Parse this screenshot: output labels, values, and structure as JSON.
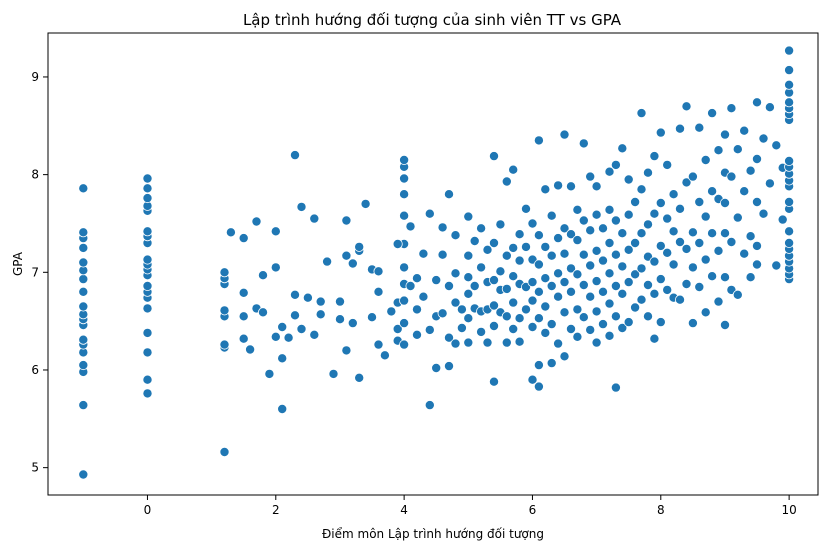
{
  "chart_data": {
    "type": "scatter",
    "title": "Lập trình hướng đối tượng của sinh viên TT vs GPA",
    "xlabel": "Điểm môn Lập trình hướng đối tượng",
    "ylabel": "GPA",
    "xlim": [
      -1.55,
      10.45
    ],
    "ylim": [
      4.72,
      9.45
    ],
    "xticks": [
      0,
      2,
      4,
      6,
      8,
      10
    ],
    "yticks": [
      5,
      6,
      7,
      8,
      9
    ],
    "grid": false,
    "legend": "none",
    "point_color": "#1f77b4",
    "points": [
      [
        -1,
        4.93
      ],
      [
        -1,
        5.64
      ],
      [
        -1,
        5.98
      ],
      [
        -1,
        6.05
      ],
      [
        -1,
        6.18
      ],
      [
        -1,
        6.26
      ],
      [
        -1,
        6.31
      ],
      [
        -1,
        6.46
      ],
      [
        -1,
        6.52
      ],
      [
        -1,
        6.57
      ],
      [
        -1,
        6.65
      ],
      [
        -1,
        6.8
      ],
      [
        -1,
        6.93
      ],
      [
        -1,
        7.02
      ],
      [
        -1,
        7.1
      ],
      [
        -1,
        7.25
      ],
      [
        -1,
        7.35
      ],
      [
        -1,
        7.41
      ],
      [
        -1,
        7.86
      ],
      [
        0,
        5.76
      ],
      [
        0,
        5.9
      ],
      [
        0,
        6.18
      ],
      [
        0,
        6.38
      ],
      [
        0,
        6.63
      ],
      [
        0,
        6.74
      ],
      [
        0,
        6.8
      ],
      [
        0,
        6.86
      ],
      [
        0,
        6.97
      ],
      [
        0,
        7.03
      ],
      [
        0,
        7.08
      ],
      [
        0,
        7.13
      ],
      [
        0,
        7.3
      ],
      [
        0,
        7.37
      ],
      [
        0,
        7.42
      ],
      [
        0,
        7.63
      ],
      [
        0,
        7.68
      ],
      [
        0,
        7.76
      ],
      [
        0,
        7.86
      ],
      [
        0,
        7.96
      ],
      [
        1.2,
        5.16
      ],
      [
        1.2,
        6.23
      ],
      [
        1.2,
        6.26
      ],
      [
        1.2,
        6.55
      ],
      [
        1.2,
        6.61
      ],
      [
        1.2,
        6.88
      ],
      [
        1.2,
        6.94
      ],
      [
        1.2,
        7.0
      ],
      [
        1.3,
        7.41
      ],
      [
        1.5,
        6.32
      ],
      [
        1.5,
        6.55
      ],
      [
        1.5,
        6.79
      ],
      [
        1.5,
        7.35
      ],
      [
        1.6,
        6.21
      ],
      [
        1.7,
        6.63
      ],
      [
        1.7,
        7.52
      ],
      [
        1.8,
        6.59
      ],
      [
        1.8,
        6.97
      ],
      [
        1.9,
        5.96
      ],
      [
        2.0,
        6.34
      ],
      [
        2.0,
        7.05
      ],
      [
        2.0,
        7.42
      ],
      [
        2.1,
        5.6
      ],
      [
        2.1,
        6.12
      ],
      [
        2.1,
        6.44
      ],
      [
        2.2,
        6.33
      ],
      [
        2.3,
        8.2
      ],
      [
        2.3,
        6.56
      ],
      [
        2.3,
        6.77
      ],
      [
        2.4,
        6.42
      ],
      [
        2.4,
        7.67
      ],
      [
        2.5,
        6.74
      ],
      [
        2.6,
        6.36
      ],
      [
        2.6,
        7.55
      ],
      [
        2.7,
        6.57
      ],
      [
        2.7,
        6.7
      ],
      [
        2.8,
        7.11
      ],
      [
        2.9,
        5.96
      ],
      [
        3.0,
        6.52
      ],
      [
        3.0,
        6.7
      ],
      [
        3.1,
        6.2
      ],
      [
        3.1,
        7.17
      ],
      [
        3.1,
        7.53
      ],
      [
        3.2,
        6.48
      ],
      [
        3.2,
        7.09
      ],
      [
        3.3,
        5.92
      ],
      [
        3.3,
        7.22
      ],
      [
        3.3,
        7.26
      ],
      [
        3.4,
        7.7
      ],
      [
        3.5,
        6.54
      ],
      [
        3.5,
        7.03
      ],
      [
        3.6,
        6.8
      ],
      [
        3.6,
        7.01
      ],
      [
        3.6,
        6.26
      ],
      [
        3.7,
        6.15
      ],
      [
        3.8,
        6.6
      ],
      [
        3.9,
        6.3
      ],
      [
        3.9,
        6.42
      ],
      [
        3.9,
        6.69
      ],
      [
        4.0,
        6.26
      ],
      [
        4.0,
        6.48
      ],
      [
        4.0,
        6.71
      ],
      [
        4.0,
        6.88
      ],
      [
        4.0,
        7.05
      ],
      [
        4.0,
        7.29
      ],
      [
        4.0,
        7.58
      ],
      [
        4.0,
        7.8
      ],
      [
        4.0,
        7.96
      ],
      [
        4.0,
        8.08
      ],
      [
        4.0,
        8.15
      ],
      [
        3.9,
        7.29
      ],
      [
        4.1,
        6.86
      ],
      [
        4.1,
        7.47
      ],
      [
        4.2,
        6.36
      ],
      [
        4.2,
        6.62
      ],
      [
        4.2,
        6.94
      ],
      [
        4.3,
        7.19
      ],
      [
        4.3,
        6.75
      ],
      [
        4.4,
        5.64
      ],
      [
        4.4,
        6.41
      ],
      [
        4.4,
        7.6
      ],
      [
        4.5,
        6.02
      ],
      [
        4.5,
        6.55
      ],
      [
        4.5,
        6.92
      ],
      [
        4.6,
        6.58
      ],
      [
        4.6,
        7.18
      ],
      [
        4.6,
        7.46
      ],
      [
        4.7,
        6.04
      ],
      [
        4.7,
        6.33
      ],
      [
        4.7,
        6.86
      ],
      [
        4.7,
        7.8
      ],
      [
        4.8,
        6.27
      ],
      [
        4.8,
        6.69
      ],
      [
        4.8,
        6.99
      ],
      [
        4.8,
        7.38
      ],
      [
        4.9,
        6.43
      ],
      [
        4.9,
        6.62
      ],
      [
        5.0,
        6.28
      ],
      [
        5.0,
        6.53
      ],
      [
        5.0,
        6.78
      ],
      [
        5.0,
        6.95
      ],
      [
        5.0,
        7.17
      ],
      [
        5.0,
        7.57
      ],
      [
        5.1,
        6.63
      ],
      [
        5.1,
        6.86
      ],
      [
        5.1,
        7.32
      ],
      [
        5.2,
        6.39
      ],
      [
        5.2,
        6.6
      ],
      [
        5.2,
        7.05
      ],
      [
        5.2,
        7.45
      ],
      [
        5.3,
        6.28
      ],
      [
        5.3,
        6.62
      ],
      [
        5.3,
        6.9
      ],
      [
        5.3,
        7.23
      ],
      [
        5.4,
        5.88
      ],
      [
        5.4,
        6.45
      ],
      [
        5.4,
        6.66
      ],
      [
        5.4,
        6.92
      ],
      [
        5.4,
        7.3
      ],
      [
        5.4,
        8.19
      ],
      [
        5.5,
        6.59
      ],
      [
        5.5,
        6.82
      ],
      [
        5.5,
        7.01
      ],
      [
        5.5,
        7.49
      ],
      [
        5.6,
        6.28
      ],
      [
        5.6,
        6.55
      ],
      [
        5.6,
        6.83
      ],
      [
        5.6,
        7.17
      ],
      [
        5.6,
        7.93
      ],
      [
        5.7,
        6.42
      ],
      [
        5.7,
        6.69
      ],
      [
        5.7,
        6.96
      ],
      [
        5.7,
        7.25
      ],
      [
        5.7,
        8.05
      ],
      [
        5.8,
        6.29
      ],
      [
        5.8,
        6.53
      ],
      [
        5.8,
        6.88
      ],
      [
        5.8,
        7.12
      ],
      [
        5.8,
        7.39
      ],
      [
        5.9,
        6.62
      ],
      [
        5.9,
        6.85
      ],
      [
        5.9,
        7.26
      ],
      [
        5.9,
        7.65
      ],
      [
        6.0,
        5.9
      ],
      [
        6.0,
        6.44
      ],
      [
        6.0,
        6.71
      ],
      [
        6.0,
        6.9
      ],
      [
        6.0,
        7.13
      ],
      [
        6.0,
        7.5
      ],
      [
        6.1,
        5.83
      ],
      [
        6.1,
        6.05
      ],
      [
        6.1,
        6.53
      ],
      [
        6.1,
        6.8
      ],
      [
        6.1,
        7.08
      ],
      [
        6.1,
        7.38
      ],
      [
        6.1,
        8.35
      ],
      [
        6.2,
        6.38
      ],
      [
        6.2,
        6.65
      ],
      [
        6.2,
        6.94
      ],
      [
        6.2,
        7.26
      ],
      [
        6.2,
        7.85
      ],
      [
        6.3,
        6.07
      ],
      [
        6.3,
        6.47
      ],
      [
        6.3,
        6.86
      ],
      [
        6.3,
        7.17
      ],
      [
        6.3,
        7.58
      ],
      [
        6.4,
        6.27
      ],
      [
        6.4,
        6.75
      ],
      [
        6.4,
        6.99
      ],
      [
        6.4,
        7.35
      ],
      [
        6.4,
        7.89
      ],
      [
        6.5,
        6.14
      ],
      [
        6.5,
        6.59
      ],
      [
        6.5,
        6.9
      ],
      [
        6.5,
        7.19
      ],
      [
        6.5,
        7.45
      ],
      [
        6.5,
        8.41
      ],
      [
        6.6,
        6.42
      ],
      [
        6.6,
        6.8
      ],
      [
        6.6,
        7.04
      ],
      [
        6.6,
        7.39
      ],
      [
        6.6,
        7.88
      ],
      [
        6.7,
        6.34
      ],
      [
        6.7,
        6.62
      ],
      [
        6.7,
        6.98
      ],
      [
        6.7,
        7.33
      ],
      [
        6.7,
        7.64
      ],
      [
        6.8,
        6.54
      ],
      [
        6.8,
        6.87
      ],
      [
        6.8,
        7.18
      ],
      [
        6.8,
        7.53
      ],
      [
        6.8,
        8.32
      ],
      [
        6.9,
        6.41
      ],
      [
        6.9,
        6.75
      ],
      [
        6.9,
        7.07
      ],
      [
        6.9,
        7.43
      ],
      [
        6.9,
        7.98
      ],
      [
        7.0,
        6.28
      ],
      [
        7.0,
        6.6
      ],
      [
        7.0,
        6.91
      ],
      [
        7.0,
        7.22
      ],
      [
        7.0,
        7.59
      ],
      [
        7.0,
        7.88
      ],
      [
        7.1,
        6.47
      ],
      [
        7.1,
        6.8
      ],
      [
        7.1,
        7.12
      ],
      [
        7.1,
        7.45
      ],
      [
        7.2,
        6.35
      ],
      [
        7.2,
        6.68
      ],
      [
        7.2,
        6.99
      ],
      [
        7.2,
        7.3
      ],
      [
        7.2,
        7.64
      ],
      [
        7.2,
        8.03
      ],
      [
        7.3,
        5.82
      ],
      [
        7.3,
        6.55
      ],
      [
        7.3,
        6.86
      ],
      [
        7.3,
        7.18
      ],
      [
        7.3,
        7.53
      ],
      [
        7.3,
        8.1
      ],
      [
        7.4,
        6.43
      ],
      [
        7.4,
        6.78
      ],
      [
        7.4,
        7.06
      ],
      [
        7.4,
        7.4
      ],
      [
        7.4,
        8.27
      ],
      [
        7.5,
        6.49
      ],
      [
        7.5,
        6.9
      ],
      [
        7.5,
        7.23
      ],
      [
        7.5,
        7.59
      ],
      [
        7.5,
        7.95
      ],
      [
        7.6,
        6.64
      ],
      [
        7.6,
        6.98
      ],
      [
        7.6,
        7.3
      ],
      [
        7.6,
        7.72
      ],
      [
        7.7,
        6.72
      ],
      [
        7.7,
        7.04
      ],
      [
        7.7,
        7.4
      ],
      [
        7.7,
        7.85
      ],
      [
        7.7,
        8.63
      ],
      [
        7.8,
        6.55
      ],
      [
        7.8,
        6.87
      ],
      [
        7.8,
        7.16
      ],
      [
        7.8,
        7.49
      ],
      [
        7.8,
        8.02
      ],
      [
        7.9,
        6.32
      ],
      [
        7.9,
        6.78
      ],
      [
        7.9,
        7.11
      ],
      [
        7.9,
        7.6
      ],
      [
        7.9,
        8.19
      ],
      [
        8.0,
        6.49
      ],
      [
        8.0,
        6.93
      ],
      [
        8.0,
        7.27
      ],
      [
        8.0,
        7.71
      ],
      [
        8.0,
        8.43
      ],
      [
        8.1,
        6.82
      ],
      [
        8.1,
        7.2
      ],
      [
        8.1,
        7.55
      ],
      [
        8.1,
        8.1
      ],
      [
        8.2,
        6.74
      ],
      [
        8.2,
        7.08
      ],
      [
        8.2,
        7.42
      ],
      [
        8.2,
        7.8
      ],
      [
        8.3,
        6.72
      ],
      [
        8.3,
        7.31
      ],
      [
        8.3,
        7.65
      ],
      [
        8.3,
        8.47
      ],
      [
        8.4,
        6.88
      ],
      [
        8.4,
        7.24
      ],
      [
        8.4,
        7.92
      ],
      [
        8.4,
        8.7
      ],
      [
        8.5,
        6.48
      ],
      [
        8.5,
        7.05
      ],
      [
        8.5,
        7.41
      ],
      [
        8.5,
        7.98
      ],
      [
        8.6,
        6.85
      ],
      [
        8.6,
        7.3
      ],
      [
        8.6,
        7.72
      ],
      [
        8.6,
        8.48
      ],
      [
        8.7,
        6.59
      ],
      [
        8.7,
        7.13
      ],
      [
        8.7,
        7.57
      ],
      [
        8.7,
        8.15
      ],
      [
        8.8,
        6.96
      ],
      [
        8.8,
        7.4
      ],
      [
        8.8,
        7.83
      ],
      [
        8.8,
        8.63
      ],
      [
        8.9,
        6.7
      ],
      [
        8.9,
        7.22
      ],
      [
        8.9,
        7.75
      ],
      [
        8.9,
        8.25
      ],
      [
        9.0,
        6.46
      ],
      [
        9.0,
        6.95
      ],
      [
        9.0,
        7.4
      ],
      [
        9.0,
        7.71
      ],
      [
        9.0,
        8.02
      ],
      [
        9.0,
        8.41
      ],
      [
        9.1,
        6.82
      ],
      [
        9.1,
        7.31
      ],
      [
        9.1,
        7.98
      ],
      [
        9.1,
        8.68
      ],
      [
        9.2,
        6.77
      ],
      [
        9.2,
        7.56
      ],
      [
        9.2,
        8.26
      ],
      [
        9.3,
        7.19
      ],
      [
        9.3,
        7.83
      ],
      [
        9.3,
        8.45
      ],
      [
        9.4,
        6.95
      ],
      [
        9.4,
        7.37
      ],
      [
        9.4,
        8.04
      ],
      [
        9.5,
        7.08
      ],
      [
        9.5,
        7.27
      ],
      [
        9.5,
        7.72
      ],
      [
        9.5,
        8.16
      ],
      [
        9.5,
        8.74
      ],
      [
        9.6,
        7.6
      ],
      [
        9.6,
        8.37
      ],
      [
        9.7,
        7.91
      ],
      [
        9.7,
        8.69
      ],
      [
        9.8,
        7.07
      ],
      [
        9.8,
        8.3
      ],
      [
        9.9,
        7.54
      ],
      [
        9.9,
        8.07
      ],
      [
        10.0,
        6.93
      ],
      [
        10.0,
        6.98
      ],
      [
        10.0,
        7.04
      ],
      [
        10.0,
        7.11
      ],
      [
        10.0,
        7.17
      ],
      [
        10.0,
        7.24
      ],
      [
        10.0,
        7.3
      ],
      [
        10.0,
        7.42
      ],
      [
        10.0,
        7.65
      ],
      [
        10.0,
        7.72
      ],
      [
        10.0,
        7.88
      ],
      [
        10.0,
        7.94
      ],
      [
        10.0,
        8.01
      ],
      [
        10.0,
        8.08
      ],
      [
        10.0,
        8.14
      ],
      [
        10.0,
        8.56
      ],
      [
        10.0,
        8.62
      ],
      [
        10.0,
        8.68
      ],
      [
        10.0,
        8.74
      ],
      [
        10.0,
        8.84
      ],
      [
        10.0,
        8.92
      ],
      [
        10.0,
        9.07
      ],
      [
        10.0,
        9.27
      ]
    ]
  }
}
